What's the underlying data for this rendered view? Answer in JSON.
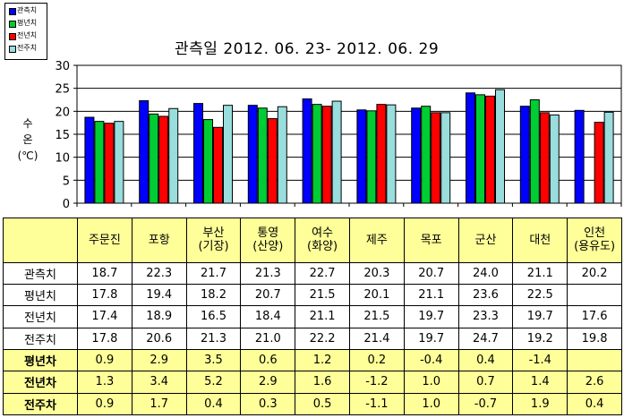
{
  "legend": {
    "items": [
      {
        "label": "관측치",
        "color": "#0000ff"
      },
      {
        "label": "평년치",
        "color": "#00cc33"
      },
      {
        "label": "전년치",
        "color": "#ff0000"
      },
      {
        "label": "전주치",
        "color": "#99dddd"
      }
    ]
  },
  "chart_data": {
    "type": "bar",
    "title": "관측일 2012. 06. 23- 2012. 06. 29",
    "ylabel": "수 온 (℃)",
    "xlabel": "",
    "ylim": [
      0,
      30
    ],
    "yticks": [
      0,
      5,
      10,
      15,
      20,
      25,
      30
    ],
    "grid": true,
    "legend_position": "top-left",
    "categories": [
      "주문진",
      "포항",
      "부산(기장)",
      "통영(산양)",
      "여수(화양)",
      "제주",
      "목포",
      "군산",
      "대천",
      "인천(용유도)"
    ],
    "series": [
      {
        "name": "관측치",
        "color": "#0000ff",
        "values": [
          18.7,
          22.3,
          21.7,
          21.3,
          22.7,
          20.3,
          20.7,
          24.0,
          21.1,
          20.2
        ]
      },
      {
        "name": "평년치",
        "color": "#00cc33",
        "values": [
          17.8,
          19.4,
          18.2,
          20.7,
          21.5,
          20.1,
          21.1,
          23.6,
          22.5,
          null
        ]
      },
      {
        "name": "전년치",
        "color": "#ff0000",
        "values": [
          17.4,
          18.9,
          16.5,
          18.4,
          21.1,
          21.5,
          19.7,
          23.3,
          19.7,
          17.6
        ]
      },
      {
        "name": "전주치",
        "color": "#99dddd",
        "values": [
          17.8,
          20.6,
          21.3,
          21.0,
          22.2,
          21.4,
          19.7,
          24.7,
          19.2,
          19.8
        ]
      }
    ]
  },
  "table": {
    "headers": [
      {
        "lines": [
          "주문진"
        ]
      },
      {
        "lines": [
          "포항"
        ]
      },
      {
        "lines": [
          "부산",
          "(기장)"
        ]
      },
      {
        "lines": [
          "통영",
          "(산양)"
        ]
      },
      {
        "lines": [
          "여수",
          "(화양)"
        ]
      },
      {
        "lines": [
          "제주"
        ]
      },
      {
        "lines": [
          "목포"
        ]
      },
      {
        "lines": [
          "군산"
        ]
      },
      {
        "lines": [
          "대천"
        ]
      },
      {
        "lines": [
          "인천",
          "(용유도)"
        ]
      }
    ],
    "rows": [
      {
        "label": "관측치",
        "diff": false,
        "values": [
          "18.7",
          "22.3",
          "21.7",
          "21.3",
          "22.7",
          "20.3",
          "20.7",
          "24.0",
          "21.1",
          "20.2"
        ]
      },
      {
        "label": "평년치",
        "diff": false,
        "values": [
          "17.8",
          "19.4",
          "18.2",
          "20.7",
          "21.5",
          "20.1",
          "21.1",
          "23.6",
          "22.5",
          ""
        ]
      },
      {
        "label": "전년치",
        "diff": false,
        "values": [
          "17.4",
          "18.9",
          "16.5",
          "18.4",
          "21.1",
          "21.5",
          "19.7",
          "23.3",
          "19.7",
          "17.6"
        ]
      },
      {
        "label": "전주치",
        "diff": false,
        "values": [
          "17.8",
          "20.6",
          "21.3",
          "21.0",
          "22.2",
          "21.4",
          "19.7",
          "24.7",
          "19.2",
          "19.8"
        ]
      },
      {
        "label": "평년차",
        "diff": true,
        "values": [
          "0.9",
          "2.9",
          "3.5",
          "0.6",
          "1.2",
          "0.2",
          "-0.4",
          "0.4",
          "-1.4",
          ""
        ]
      },
      {
        "label": "전년차",
        "diff": true,
        "values": [
          "1.3",
          "3.4",
          "5.2",
          "2.9",
          "1.6",
          "-1.2",
          "1.0",
          "0.7",
          "1.4",
          "2.6"
        ]
      },
      {
        "label": "전주차",
        "diff": true,
        "values": [
          "0.9",
          "1.7",
          "0.4",
          "0.3",
          "0.5",
          "-1.1",
          "1.0",
          "-0.7",
          "1.9",
          "0.4"
        ]
      }
    ]
  }
}
